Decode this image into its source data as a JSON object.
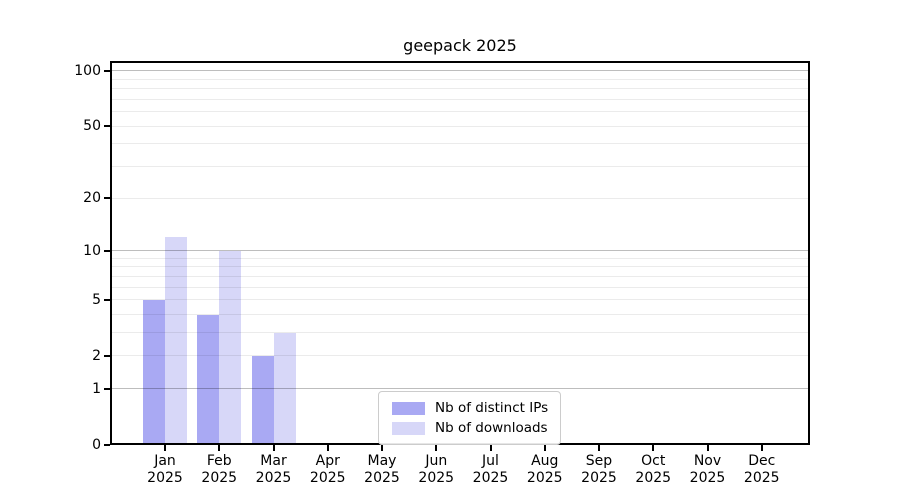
{
  "chart_data": {
    "type": "bar",
    "title": "geepack 2025",
    "categories": [
      "Jan",
      "Feb",
      "Mar",
      "Apr",
      "May",
      "Jun",
      "Jul",
      "Aug",
      "Sep",
      "Oct",
      "Nov",
      "Dec"
    ],
    "year_label": "2025",
    "series": [
      {
        "name": "Nb of distinct IPs",
        "color": "#a9a9f3",
        "values": [
          5,
          4,
          2,
          0,
          0,
          0,
          0,
          0,
          0,
          0,
          0,
          0
        ]
      },
      {
        "name": "Nb of downloads",
        "color": "#d7d7f8",
        "values": [
          12,
          10,
          3,
          0,
          0,
          0,
          0,
          0,
          0,
          0,
          0,
          0
        ]
      }
    ],
    "yscale": "log1p",
    "ylim": [
      0,
      113
    ],
    "yticks": [
      100,
      50,
      20,
      10,
      5,
      2,
      1,
      0
    ],
    "grid_major": [
      1,
      10,
      100
    ],
    "grid_minor": [
      2,
      3,
      4,
      5,
      6,
      7,
      8,
      9,
      20,
      30,
      40,
      50,
      60,
      70,
      80,
      90
    ],
    "grid": "on",
    "legend_position": "lower center",
    "xlabel": "",
    "ylabel": ""
  },
  "colors": {
    "background": "#ffffff",
    "spine": "#000000",
    "text": "#000000",
    "grid_major": "rgba(0,0,0,0.26)",
    "grid_minor": "rgba(0,0,0,0.08)",
    "legend_border": "#cccccc"
  }
}
